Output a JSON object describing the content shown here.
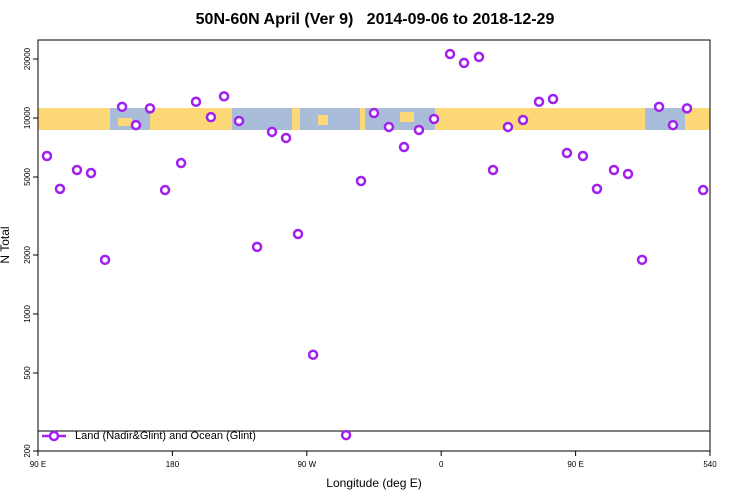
{
  "chart_data": {
    "type": "scatter",
    "title": "50N-60N April (Ver 9)   2014-09-06 to 2018-12-29",
    "x_label": "Longitude (deg E)",
    "y_label": "N Total",
    "y_scale": "log",
    "xlim": [
      90,
      540
    ],
    "xticks": [
      {
        "value": 90,
        "label": "90 E"
      },
      180,
      {
        "value": 270,
        "label": "90 W"
      },
      {
        "value": 360,
        "label": "0"
      },
      {
        "value": 450,
        "label": "90 E"
      },
      540
    ],
    "ylim": [
      200,
      25000
    ],
    "yticks": [
      200,
      500,
      1000,
      2000,
      5000,
      10000,
      20000
    ],
    "legend": "lower left",
    "series": [
      {
        "name": "Land (Nadir&Glint) and Ocean (Glint)",
        "color": "#a020f0",
        "x": [
          96,
          104.7,
          116.1,
          125.5,
          134.9,
          146.3,
          155.6,
          165,
          175.1,
          185.8,
          195.8,
          205.8,
          214.6,
          224.6,
          236.7,
          246.7,
          256.1,
          264.1,
          274.2,
          296.3,
          306.3,
          315,
          325,
          335.1,
          345.1,
          355.2,
          365.9,
          375.3,
          385.3,
          394.7,
          404.7,
          414.8,
          425.5,
          434.9,
          444.2,
          454.9,
          464.3,
          475.7,
          485.1,
          494.5,
          505.9,
          515.2,
          524.6,
          535.4
        ],
        "values": [
          6400,
          4350,
          5430,
          5240,
          1890,
          11400,
          9200,
          11200,
          4290,
          5890,
          12100,
          10100,
          12900,
          9660,
          2200,
          8490,
          7910,
          2560,
          620,
          241,
          4770,
          10600,
          9000,
          7110,
          8690,
          9890,
          21200,
          19100,
          20500,
          5430,
          9000,
          9770,
          12100,
          12500,
          6630,
          6400,
          4350,
          5430,
          5180,
          1890,
          11400,
          9200,
          11200,
          4290
        ]
      }
    ]
  }
}
